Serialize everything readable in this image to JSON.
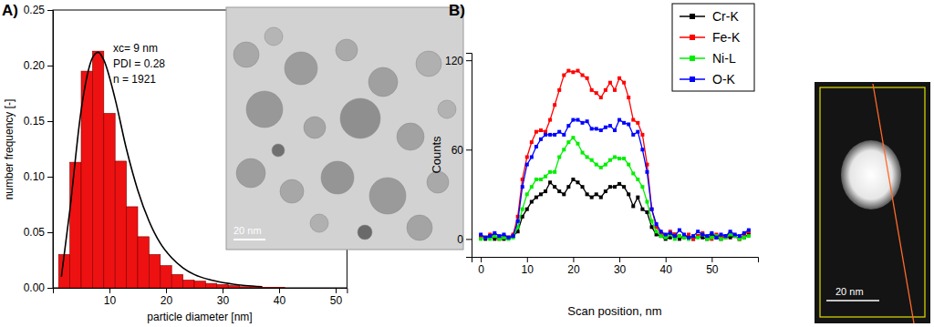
{
  "chart_data": [
    {
      "type": "histogram",
      "panel_label": "A)",
      "x_label": "particle diameter [nm]",
      "y_label": "number frequency [-]",
      "annotations": [
        "xc= 9 nm",
        "PDI = 0.28",
        "n = 1921"
      ],
      "bins": [
        1,
        3,
        5,
        7,
        9,
        11,
        13,
        15,
        17,
        19,
        21,
        23,
        25,
        27,
        29,
        31,
        33,
        35,
        37,
        39,
        41
      ],
      "counts": [
        0.03,
        0.113,
        0.195,
        0.213,
        0.157,
        0.114,
        0.073,
        0.046,
        0.03,
        0.02,
        0.012,
        0.007,
        0.006,
        0.004,
        0.003,
        0.002,
        0.001,
        0.001,
        0.0005,
        0.0005
      ],
      "color": "#ee1111",
      "fit_curve": {
        "type": "line",
        "color": "#000000",
        "x": [
          1.5,
          3,
          5,
          7,
          8,
          9,
          11,
          13,
          15,
          17,
          19,
          21,
          23,
          25,
          28,
          31,
          34,
          37
        ],
        "values": [
          0.01,
          0.07,
          0.16,
          0.207,
          0.212,
          0.205,
          0.17,
          0.125,
          0.088,
          0.06,
          0.04,
          0.027,
          0.018,
          0.012,
          0.007,
          0.004,
          0.002,
          0.001
        ]
      },
      "xlim": [
        0,
        52
      ],
      "xticks": [
        10,
        20,
        30,
        40,
        50
      ],
      "ylim": [
        0,
        0.25
      ],
      "yticks": [
        {
          "value": 0,
          "label": "0.00"
        },
        {
          "value": 0.05,
          "label": "0.05"
        },
        {
          "value": 0.1,
          "label": "0.10"
        },
        {
          "value": 0.15,
          "label": "0.15"
        },
        {
          "value": 0.2,
          "label": "0.20"
        },
        {
          "value": 0.25,
          "label": "0.25"
        }
      ],
      "grid": false,
      "inset_image": {
        "scale_bar": "20 nm"
      }
    },
    {
      "type": "line",
      "panel_label": "B)",
      "x_label": "Scan position, nm",
      "y_label": "Counts",
      "x": [
        0,
        1,
        2,
        3,
        4,
        5,
        6,
        7,
        8,
        9,
        10,
        11,
        12,
        13,
        14,
        15,
        16,
        17,
        18,
        19,
        20,
        21,
        22,
        23,
        24,
        25,
        26,
        27,
        28,
        29,
        30,
        31,
        32,
        33,
        34,
        35,
        36,
        37,
        38,
        39,
        40,
        41,
        42,
        43,
        44,
        45,
        46,
        47,
        48,
        49,
        50,
        51,
        52,
        53,
        54,
        55,
        56,
        57,
        58
      ],
      "series": [
        {
          "name": "Cr-K",
          "color": "#000000",
          "marker": "square",
          "line_style": "solid",
          "values": [
            1,
            0,
            2,
            0,
            1,
            0,
            1,
            2,
            5,
            15,
            20,
            25,
            28,
            30,
            32,
            38,
            35,
            32,
            30,
            35,
            40,
            38,
            35,
            30,
            28,
            30,
            28,
            32,
            35,
            35,
            37,
            35,
            30,
            22,
            28,
            20,
            18,
            8,
            3,
            2,
            0,
            1,
            3,
            0,
            2,
            1,
            0,
            2,
            1,
            0,
            3,
            1,
            0,
            2,
            1,
            2,
            0,
            1,
            3
          ]
        },
        {
          "name": "Fe-K",
          "color": "#ff0000",
          "marker": "square",
          "line_style": "solid",
          "values": [
            2,
            1,
            3,
            2,
            0,
            2,
            1,
            3,
            15,
            40,
            55,
            65,
            72,
            73,
            72,
            80,
            90,
            100,
            110,
            113,
            112,
            113,
            110,
            108,
            100,
            98,
            95,
            100,
            105,
            100,
            108,
            105,
            95,
            80,
            78,
            70,
            50,
            20,
            8,
            4,
            2,
            5,
            3,
            2,
            1,
            3,
            0,
            2,
            4,
            1,
            0,
            3,
            2,
            1,
            4,
            2,
            0,
            3,
            5
          ]
        },
        {
          "name": "Ni-L",
          "color": "#00ee00",
          "marker": "square",
          "line_style": "solid",
          "values": [
            0,
            1,
            0,
            2,
            0,
            1,
            0,
            1,
            8,
            20,
            30,
            35,
            40,
            40,
            42,
            45,
            45,
            55,
            60,
            65,
            68,
            64,
            58,
            55,
            53,
            50,
            48,
            50,
            53,
            55,
            54,
            54,
            50,
            44,
            40,
            35,
            25,
            12,
            5,
            2,
            1,
            3,
            0,
            2,
            1,
            0,
            2,
            1,
            3,
            0,
            1,
            2,
            0,
            1,
            3,
            2,
            0,
            1,
            2
          ]
        },
        {
          "name": "O-K",
          "color": "#0000ff",
          "marker": "square",
          "line_style": "solid",
          "values": [
            3,
            1,
            2,
            4,
            2,
            3,
            1,
            2,
            12,
            35,
            50,
            55,
            62,
            67,
            70,
            70,
            70,
            72,
            70,
            76,
            80,
            80,
            78,
            79,
            74,
            74,
            73,
            75,
            76,
            73,
            80,
            78,
            77,
            70,
            72,
            60,
            45,
            20,
            10,
            5,
            3,
            4,
            2,
            6,
            3,
            1,
            2,
            5,
            3,
            2,
            4,
            1,
            3,
            2,
            5,
            3,
            2,
            4,
            6
          ]
        }
      ],
      "xlim": [
        -2,
        60
      ],
      "xticks": [
        0,
        10,
        20,
        30,
        40,
        50
      ],
      "ylim": [
        -12,
        125
      ],
      "yticks": [
        0,
        60,
        120
      ],
      "grid": false,
      "legend": "top-right",
      "inset_image": {
        "scale_bar": "20 nm"
      }
    }
  ]
}
